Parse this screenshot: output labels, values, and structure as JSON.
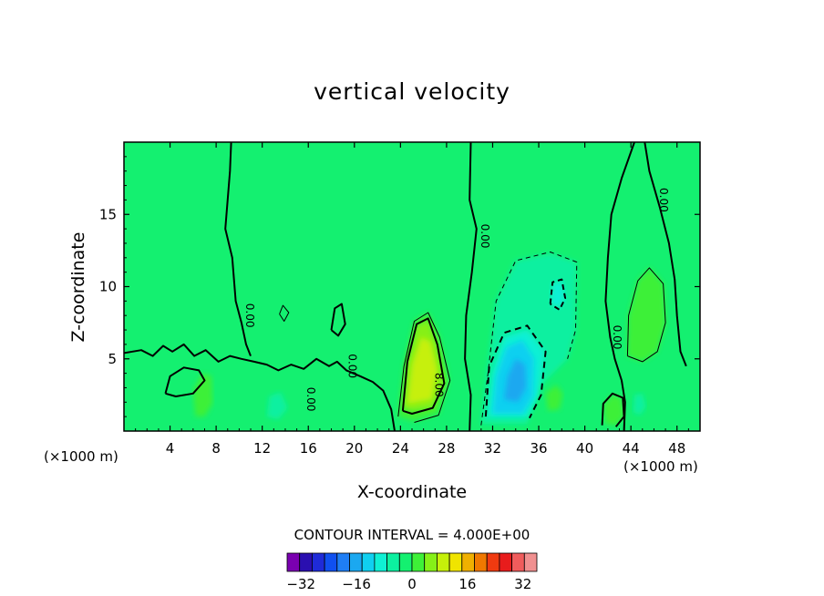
{
  "chart_data": {
    "type": "heatmap",
    "title": "vertical velocity",
    "xlabel": "X-coordinate",
    "ylabel": "Z-coordinate",
    "x_unit_left": "(×1000 m)",
    "x_unit_right": "(×1000 m)",
    "xlim": [
      0,
      50
    ],
    "ylim": [
      0,
      20
    ],
    "x_ticks": [
      4,
      8,
      12,
      16,
      20,
      24,
      28,
      32,
      36,
      40,
      44,
      48
    ],
    "y_ticks": [
      5,
      10,
      15
    ],
    "contour_labels": [
      {
        "text": "0.00",
        "x": 10.6,
        "y": 8.0
      },
      {
        "text": "0.00",
        "x": 15.9,
        "y": 2.2
      },
      {
        "text": "0.00",
        "x": 19.5,
        "y": 4.5
      },
      {
        "text": "8.00",
        "x": 27.0,
        "y": 3.2
      },
      {
        "text": "0.00",
        "x": 31.0,
        "y": 13.5
      },
      {
        "text": "0.00",
        "x": 42.5,
        "y": 6.5
      },
      {
        "text": "0.00",
        "x": 46.5,
        "y": 16.0
      }
    ],
    "features": [
      {
        "kind": "updraft",
        "x": 25.8,
        "y": 4.5,
        "max": 18
      },
      {
        "kind": "downdraft",
        "x": 34.0,
        "y": 3.5,
        "min": -14
      },
      {
        "kind": "downdraft",
        "x": 37.5,
        "y": 9.5,
        "min": -6
      },
      {
        "kind": "updraft",
        "x": 45.0,
        "y": 8.0,
        "max": 6
      }
    ],
    "contour_interval_text": "CONTOUR INTERVAL = 4.000E+00",
    "colorbar": {
      "min": -36,
      "max": 36,
      "step": 4,
      "tick_labels": [
        "−32",
        "−16",
        "0",
        "16",
        "32"
      ],
      "tick_values": [
        -32,
        -16,
        0,
        16,
        32
      ],
      "colors": [
        "#7a00b0",
        "#2a0fb0",
        "#1f2bd8",
        "#1050f0",
        "#1f7ef5",
        "#1ba8f0",
        "#10d0f0",
        "#0ff0d4",
        "#0cf0a0",
        "#14f070",
        "#3ef038",
        "#86f018",
        "#c6f00a",
        "#f0e400",
        "#f0b000",
        "#f07800",
        "#f03a10",
        "#e81c1c",
        "#f05c5c",
        "#f09090"
      ]
    }
  }
}
